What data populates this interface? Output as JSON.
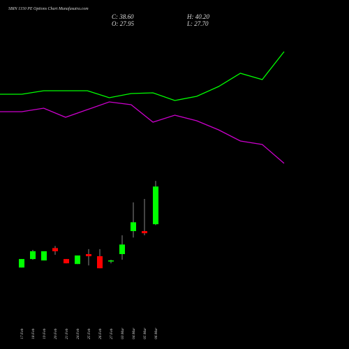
{
  "chart_data": [
    {
      "type": "candlestick",
      "title": "SBIN 1150 PE Options Chart Munafasutra.com",
      "ohlc_labels": [
        "C: 38.60",
        "O: 27.95",
        "H: 40.20",
        "L: 27.70"
      ],
      "categories": [
        "17 Feb",
        "18 Feb",
        "19 Feb",
        "20 Feb",
        "21 Feb",
        "24 Feb",
        "25 Feb",
        "26 Feb",
        "27 Feb",
        "03 Mar",
        "04 Mar",
        "05 Mar",
        "06 Mar"
      ],
      "open": [
        15.7,
        18.1,
        17.7,
        21.2,
        18.1,
        16.7,
        19.5,
        18.9,
        17.5,
        19.5,
        26.0,
        26.0,
        27.95
      ],
      "high": [
        18.1,
        20.7,
        20.3,
        21.8,
        18.1,
        19.1,
        20.9,
        20.9,
        17.9,
        24.8,
        34.1,
        35.1,
        40.2
      ],
      "low": [
        15.7,
        17.9,
        17.7,
        19.3,
        16.9,
        16.7,
        16.3,
        15.5,
        16.9,
        17.9,
        24.2,
        24.8,
        27.7
      ],
      "close": [
        18.1,
        20.3,
        20.3,
        20.3,
        16.9,
        19.1,
        18.9,
        15.5,
        17.7,
        22.2,
        28.5,
        25.4,
        38.6
      ],
      "ylim": [
        12.4,
        42.0
      ],
      "up_color": "#00ff00",
      "down_color": "#ff0000"
    },
    {
      "type": "line",
      "series": [
        {
          "color": "#00ff00",
          "values": [
            57.5,
            57.5,
            60,
            60,
            60,
            55,
            58,
            58.5,
            53,
            56,
            63,
            72.5,
            68,
            88
          ]
        },
        {
          "color": "#cc00cc",
          "values": [
            45,
            45,
            47.5,
            41,
            46.5,
            52,
            50,
            37.5,
            42.5,
            38.5,
            32,
            24,
            21.5,
            8
          ]
        }
      ],
      "ylim": [
        0,
        100
      ]
    }
  ]
}
